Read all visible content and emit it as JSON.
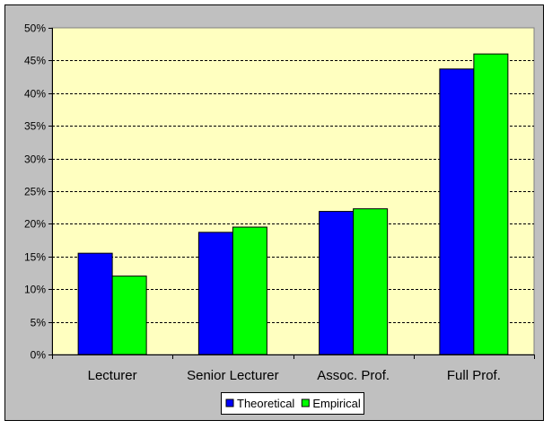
{
  "chart_data": {
    "type": "bar",
    "title": "",
    "xlabel": "",
    "ylabel": "",
    "categories": [
      "Lecturer",
      "Senior Lecturer",
      "Assoc. Prof.",
      "Full Prof."
    ],
    "series": [
      {
        "name": "Theoretical",
        "color": "#0000ff",
        "values": [
          0.155,
          0.187,
          0.219,
          0.437
        ]
      },
      {
        "name": "Empirical",
        "color": "#00ff00",
        "values": [
          0.12,
          0.195,
          0.223,
          0.46
        ]
      }
    ],
    "ylim": [
      0,
      0.5
    ],
    "yticks": [
      "0%",
      "5%",
      "10%",
      "15%",
      "20%",
      "25%",
      "30%",
      "35%",
      "40%",
      "45%",
      "50%"
    ],
    "ytick_values": [
      0,
      0.05,
      0.1,
      0.15,
      0.2,
      0.25,
      0.3,
      0.35,
      0.4,
      0.45,
      0.5
    ],
    "grid": true,
    "legend_position": "bottom-center",
    "plot_background": "#ffffc0",
    "chart_background": "#c0c0c0"
  }
}
